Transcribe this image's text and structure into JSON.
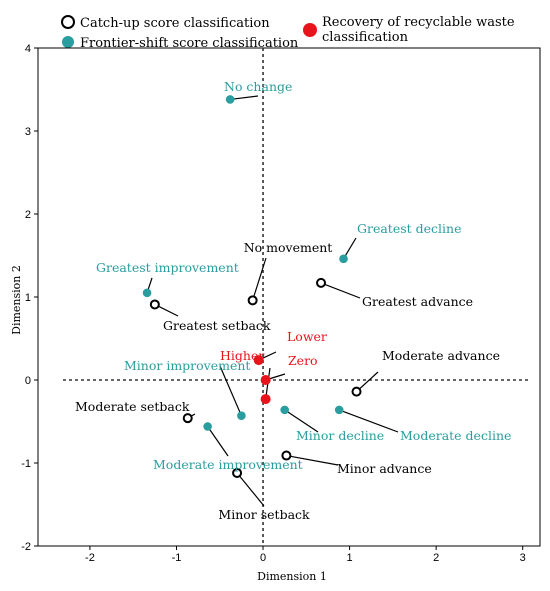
{
  "chart_data": {
    "type": "scatter",
    "xlabel": "Dimension 1",
    "ylabel": "Dimension 2",
    "xlim": [
      -2.6,
      3.2
    ],
    "ylim": [
      -2,
      4
    ],
    "xticks": [
      "-2",
      "-1",
      "0",
      "1",
      "2",
      "3"
    ],
    "yticks": [
      "-2",
      "-1",
      "0",
      "1",
      "2",
      "3",
      "4"
    ],
    "reference_lines": {
      "x": 0,
      "y": 0,
      "style": "dotted"
    },
    "colors": {
      "catchup": "#000000",
      "frontier": "#2a9d9f",
      "recovery": "#e8141b"
    },
    "legend": [
      {
        "name": "Catch-up score classification",
        "marker": "open-circle",
        "series": "catchup"
      },
      {
        "name": "Frontier-shift score classification",
        "marker": "teal-dot",
        "series": "frontier"
      },
      {
        "name": "Recovery of recyclable waste classification",
        "marker": "red-dot",
        "series": "recovery"
      }
    ],
    "series": [
      {
        "name": "Catch-up score classification",
        "points": [
          {
            "label": "No movement",
            "x": -0.12,
            "y": 0.96
          },
          {
            "label": "Greatest advance",
            "x": 0.67,
            "y": 1.17
          },
          {
            "label": "Greatest setback",
            "x": -1.25,
            "y": 0.91
          },
          {
            "label": "Moderate advance",
            "x": 1.08,
            "y": -0.14
          },
          {
            "label": "Moderate setback",
            "x": -0.87,
            "y": -0.46
          },
          {
            "label": "Minor advance",
            "x": 0.27,
            "y": -0.91
          },
          {
            "label": "Minor setback",
            "x": -0.3,
            "y": -1.12
          }
        ]
      },
      {
        "name": "Frontier-shift score classification",
        "points": [
          {
            "label": "No change",
            "x": -0.38,
            "y": 3.38
          },
          {
            "label": "Greatest decline",
            "x": 0.93,
            "y": 1.46
          },
          {
            "label": "Greatest improvement",
            "x": -1.34,
            "y": 1.05
          },
          {
            "label": "Minor improvement",
            "x": -0.25,
            "y": -0.43
          },
          {
            "label": "Minor decline",
            "x": 0.25,
            "y": -0.36
          },
          {
            "label": "Moderate decline",
            "x": 0.88,
            "y": -0.36
          },
          {
            "label": "Moderate improvement",
            "x": -0.64,
            "y": -0.56
          }
        ]
      },
      {
        "name": "Recovery of recyclable waste classification",
        "points": [
          {
            "label": "Lower",
            "x": -0.05,
            "y": 0.24
          },
          {
            "label": "Zero",
            "x": 0.03,
            "y": 0.0
          },
          {
            "label": "Higher",
            "x": 0.03,
            "y": -0.23
          }
        ]
      }
    ]
  }
}
